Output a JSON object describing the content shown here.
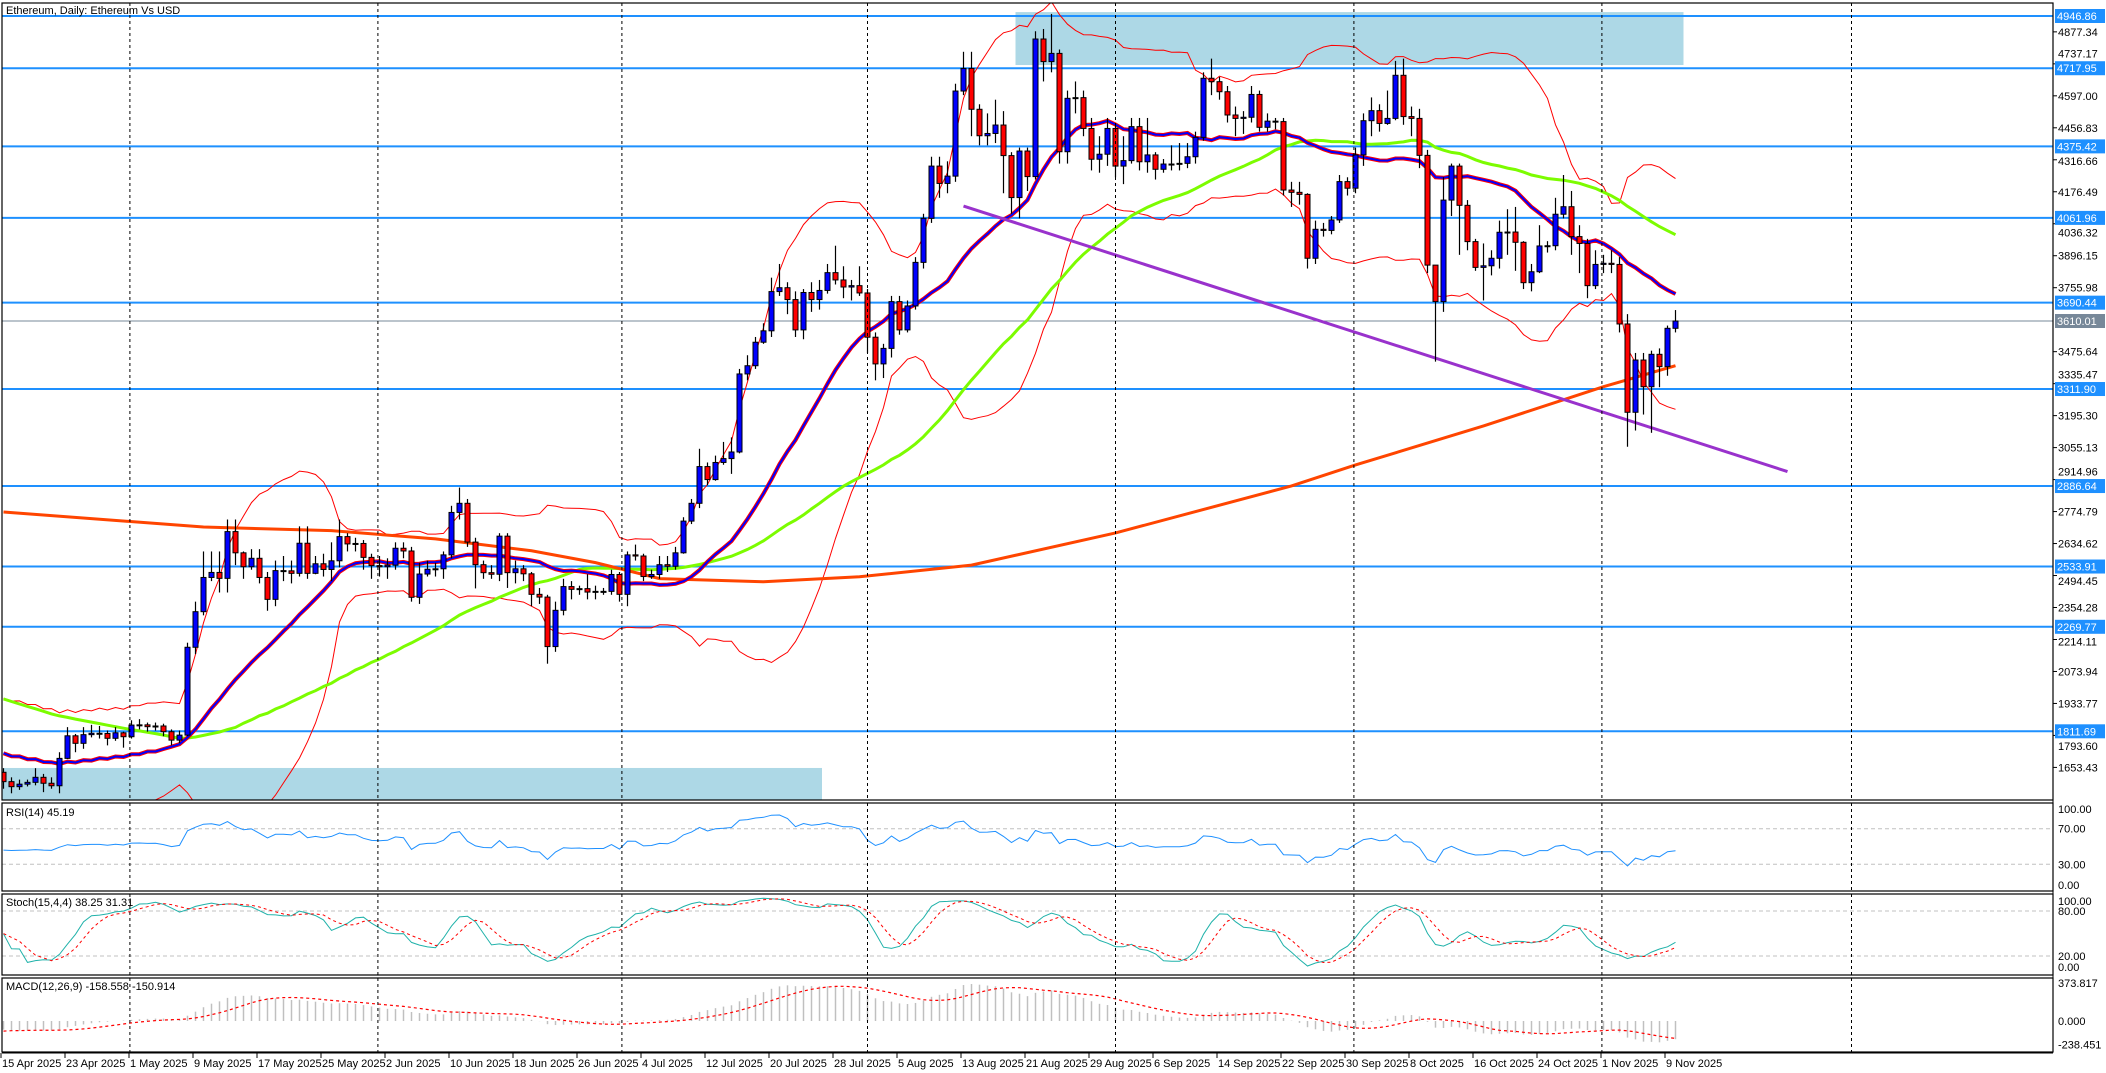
{
  "title": "Ethereum, Daily:  Ethereum Vs USD",
  "colors": {
    "bull": "#0000ff",
    "bear": "#ff0000",
    "level": "#1e90ff",
    "current_price": "#778899",
    "zone": "#add8e6",
    "sma20": "#0000ff",
    "bollinger": "#ff0000",
    "sma50": "#7cfc00",
    "ma200": "#ff4500",
    "trendline": "#9932cc",
    "rsi": "#1e90ff",
    "stoch_main": "#20b2aa",
    "stoch_signal": "#ff0000",
    "macd_hist": "#c0c0c0",
    "macd_signal": "#ff0000"
  },
  "chart_data": {
    "type": "candlestick",
    "title": "Ethereum, Daily:  Ethereum Vs USD",
    "start_date": "15 Apr 2025",
    "open_first": 1632,
    "close": [
      1591,
      1569,
      1580,
      1588,
      1610,
      1584,
      1573,
      1693,
      1792,
      1759,
      1797,
      1803,
      1802,
      1781,
      1805,
      1788,
      1839,
      1840,
      1832,
      1835,
      1810,
      1773,
      1795,
      2180,
      2336,
      2486,
      2508,
      2482,
      2687,
      2594,
      2533,
      2570,
      2486,
      2390,
      2516,
      2515,
      2504,
      2636,
      2504,
      2546,
      2521,
      2559,
      2665,
      2633,
      2635,
      2574,
      2538,
      2533,
      2540,
      2614,
      2602,
      2399,
      2501,
      2522,
      2524,
      2585,
      2771,
      2811,
      2641,
      2542,
      2507,
      2500,
      2667,
      2507,
      2524,
      2502,
      2412,
      2400,
      2183,
      2342,
      2446,
      2434,
      2437,
      2422,
      2425,
      2425,
      2499,
      2412,
      2585,
      2580,
      2490,
      2499,
      2542,
      2535,
      2594,
      2733,
      2811,
      2972,
      2915,
      2990,
      3007,
      3036,
      3378,
      3414,
      3517,
      3567,
      3739,
      3756,
      3704,
      3571,
      3735,
      3704,
      3744,
      3822,
      3790,
      3759,
      3765,
      3733,
      3539,
      3422,
      3490,
      3695,
      3571,
      3676,
      3867,
      4060,
      4289,
      4213,
      4245,
      4618,
      4717,
      4538,
      4422,
      4432,
      4469,
      4335,
      4151,
      4355,
      4243,
      4846,
      4747,
      4783,
      4352,
      4586,
      4589,
      4454,
      4319,
      4341,
      4454,
      4289,
      4313,
      4462,
      4308,
      4338,
      4275,
      4298,
      4297,
      4301,
      4330,
      4415,
      4674,
      4659,
      4615,
      4513,
      4498,
      4503,
      4603,
      4459,
      4486,
      4484,
      4184,
      4174,
      4165,
      3885,
      4012,
      4007,
      4053,
      4221,
      4192,
      4338,
      4488,
      4532,
      4476,
      4498,
      4687,
      4506,
      4498,
      4336,
      3855,
      3695,
      4140,
      4289,
      4117,
      3958,
      3845,
      3852,
      3885,
      3999,
      4000,
      3955,
      3778,
      3826,
      3939,
      3940,
      4078,
      4111,
      3980,
      3950,
      3765,
      3858,
      3863,
      3858,
      3597,
      3210,
      3439,
      3322,
      3464,
      3410,
      3578,
      3610
    ],
    "high": [
      1650,
      1610,
      1600,
      1600,
      1650,
      1625,
      1610,
      1720,
      1830,
      1800,
      1830,
      1840,
      1835,
      1815,
      1830,
      1810,
      1860,
      1865,
      1850,
      1850,
      1845,
      1820,
      1815,
      2200,
      2380,
      2600,
      2600,
      2600,
      2740,
      2740,
      2600,
      2610,
      2610,
      2510,
      2560,
      2580,
      2560,
      2710,
      2710,
      2580,
      2590,
      2640,
      2740,
      2680,
      2660,
      2650,
      2590,
      2580,
      2570,
      2640,
      2640,
      2620,
      2550,
      2560,
      2550,
      2600,
      2800,
      2880,
      2830,
      2660,
      2560,
      2540,
      2680,
      2680,
      2560,
      2540,
      2510,
      2440,
      2410,
      2380,
      2480,
      2470,
      2450,
      2500,
      2450,
      2440,
      2520,
      2510,
      2600,
      2630,
      2590,
      2520,
      2580,
      2580,
      2620,
      2750,
      2830,
      3050,
      2990,
      3020,
      3080,
      3100,
      3400,
      3460,
      3540,
      3600,
      3800,
      3860,
      3780,
      3740,
      3750,
      3780,
      3790,
      3860,
      3940,
      3850,
      3790,
      3850,
      3750,
      3560,
      3510,
      3720,
      3720,
      3700,
      3890,
      4080,
      4330,
      4330,
      4310,
      4650,
      4790,
      4790,
      4560,
      4520,
      4580,
      4530,
      4350,
      4370,
      4370,
      4880,
      4890,
      4956,
      4800,
      4620,
      4660,
      4620,
      4500,
      4420,
      4500,
      4470,
      4420,
      4500,
      4500,
      4500,
      4350,
      4320,
      4380,
      4390,
      4390,
      4440,
      4700,
      4760,
      4680,
      4640,
      4550,
      4530,
      4640,
      4620,
      4520,
      4500,
      4500,
      4220,
      4220,
      4170,
      4050,
      4040,
      4070,
      4250,
      4240,
      4370,
      4520,
      4590,
      4560,
      4620,
      4750,
      4760,
      4550,
      4540,
      4360,
      3710,
      4240,
      4300,
      4300,
      4140,
      3970,
      3950,
      3920,
      4050,
      4100,
      4110,
      3960,
      3860,
      4030,
      3960,
      4150,
      4250,
      4180,
      4030,
      3970,
      3920,
      3900,
      3920,
      3890,
      3640,
      3470,
      3470,
      3480,
      3490,
      3590,
      3658
    ],
    "low": [
      1560,
      1540,
      1555,
      1570,
      1575,
      1545,
      1560,
      1540,
      1690,
      1720,
      1735,
      1785,
      1780,
      1750,
      1770,
      1740,
      1780,
      1820,
      1810,
      1815,
      1790,
      1750,
      1760,
      1790,
      2150,
      2320,
      2470,
      2420,
      2420,
      2540,
      2480,
      2520,
      2460,
      2340,
      2360,
      2470,
      2460,
      2490,
      2480,
      2500,
      2490,
      2470,
      2530,
      2600,
      2600,
      2520,
      2480,
      2490,
      2480,
      2520,
      2570,
      2380,
      2370,
      2490,
      2490,
      2480,
      2570,
      2740,
      2620,
      2438,
      2480,
      2480,
      2470,
      2440,
      2460,
      2470,
      2360,
      2370,
      2108,
      2160,
      2320,
      2390,
      2410,
      2390,
      2390,
      2410,
      2410,
      2380,
      2360,
      2560,
      2470,
      2480,
      2480,
      2510,
      2520,
      2590,
      2720,
      2790,
      2890,
      2910,
      2980,
      2940,
      3030,
      3350,
      3400,
      3510,
      3540,
      3720,
      3640,
      3540,
      3530,
      3650,
      3660,
      3730,
      3770,
      3710,
      3700,
      3720,
      3470,
      3350,
      3360,
      3450,
      3550,
      3560,
      3660,
      3840,
      4040,
      4150,
      4170,
      4220,
      4600,
      4420,
      4380,
      4380,
      4390,
      4170,
      4080,
      4060,
      4180,
      4230,
      4660,
      4700,
      4300,
      4300,
      4520,
      4420,
      4270,
      4260,
      4290,
      4240,
      4210,
      4300,
      4270,
      4260,
      4230,
      4260,
      4270,
      4270,
      4280,
      4300,
      4400,
      4600,
      4580,
      4480,
      4420,
      4430,
      4480,
      4440,
      4440,
      4450,
      4160,
      4110,
      4120,
      3840,
      3860,
      3980,
      3990,
      4040,
      4160,
      4170,
      4290,
      4420,
      4440,
      4470,
      4490,
      4470,
      4420,
      4280,
      3820,
      3432,
      3650,
      4070,
      3900,
      3920,
      3830,
      3700,
      3810,
      3840,
      3900,
      3830,
      3750,
      3740,
      3820,
      3910,
      3920,
      4060,
      3900,
      3820,
      3710,
      3750,
      3820,
      3820,
      3560,
      3059,
      3130,
      3200,
      3120,
      3320,
      3370,
      3560
    ],
    "date_labels": [
      "15 Apr 2025",
      "23 Apr 2025",
      "1 May 2025",
      "9 May 2025",
      "17 May 2025",
      "25 May 2025",
      "2 Jun 2025",
      "10 Jun 2025",
      "18 Jun 2025",
      "26 Jun 2025",
      "4 Jul 2025",
      "12 Jul 2025",
      "20 Jul 2025",
      "28 Jul 2025",
      "5 Aug 2025",
      "13 Aug 2025",
      "21 Aug 2025",
      "29 Aug 2025",
      "6 Sep 2025",
      "14 Sep 2025",
      "22 Sep 2025",
      "30 Sep 2025",
      "8 Oct 2025",
      "16 Oct 2025",
      "24 Oct 2025",
      "1 Nov 2025",
      "9 Nov 2025"
    ],
    "date_label_step_days": 8,
    "price_ticks": [
      "4877.34",
      "4737.17",
      "4597.00",
      "4456.83",
      "4316.66",
      "4176.49",
      "4036.32",
      "3896.15",
      "3755.98",
      "3475.64",
      "3335.47",
      "3195.30",
      "3055.13",
      "2914.96",
      "2774.79",
      "2634.62",
      "2494.45",
      "2354.28",
      "2214.11",
      "2073.94",
      "1933.77",
      "1793.60",
      "1653.43"
    ],
    "levels": [
      "4946.86",
      "4717.95",
      "4375.42",
      "4061.96",
      "3690.44",
      "3311.90",
      "2886.64",
      "2533.91",
      "2269.77",
      "1811.69"
    ],
    "current_price": "3610.01",
    "ma200": [
      [
        0,
        2773
      ],
      [
        25,
        2707
      ],
      [
        41,
        2691
      ],
      [
        54,
        2655
      ],
      [
        66,
        2603
      ],
      [
        74,
        2551
      ],
      [
        82,
        2481
      ],
      [
        95,
        2467
      ],
      [
        107,
        2489
      ],
      [
        121,
        2540
      ],
      [
        139,
        2681
      ],
      [
        161,
        2887
      ],
      [
        169,
        2979
      ],
      [
        185,
        3150
      ],
      [
        200,
        3322
      ],
      [
        209,
        3414
      ]
    ],
    "trendline": [
      [
        120,
        4114
      ],
      [
        223,
        2950
      ]
    ],
    "zones": [
      {
        "name": "supply-zone",
        "days": [
          127,
          210
        ],
        "prices": [
          4732,
          4964
        ]
      },
      {
        "name": "demand-zone",
        "days": [
          0,
          102
        ],
        "prices": [
          1510,
          1651
        ]
      }
    ],
    "overlays": {
      "sma_fast": 20,
      "sma_slow": 50,
      "bollinger": [
        20,
        2
      ]
    },
    "indicators": {
      "rsi": {
        "label": "RSI(14) 45.19",
        "axis": [
          "100.00",
          "70.00",
          "30.00",
          "0.00"
        ],
        "levels": [
          70,
          30
        ]
      },
      "stoch": {
        "label": "Stoch(15,4,4) 38.25 31.31",
        "axis": [
          "100.00",
          "80.00",
          "20.00",
          "0.00"
        ],
        "levels": [
          80,
          20
        ]
      },
      "macd": {
        "label": "MACD(12,26,9) -158.558 -150.914",
        "axis": [
          "373.817",
          "0.000",
          "-238.451"
        ],
        "range": [
          -238.451,
          373.817
        ]
      }
    }
  }
}
